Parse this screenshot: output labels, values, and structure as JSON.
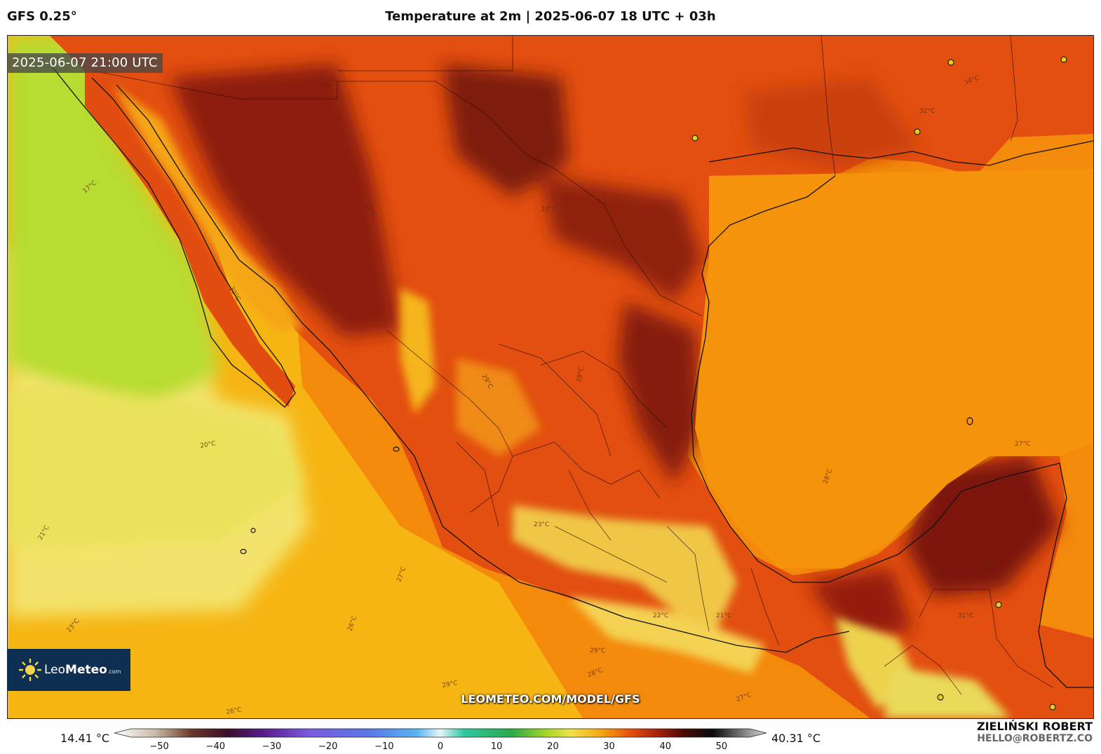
{
  "header": {
    "model": "GFS 0.25°",
    "title": "Temperature at 2m | 2025-06-07 18 UTC + 03h"
  },
  "map": {
    "timestamp": "2025-06-07 21:00 UTC",
    "url": "LEOMETEO.COM/MODEL/GFS",
    "contour_labels": [
      "17°C",
      "20°C",
      "21°C",
      "23°C",
      "26°C",
      "26°C",
      "27°C",
      "27°C",
      "28°C",
      "28°C",
      "29°C",
      "29°C",
      "29°C",
      "29°C",
      "30°C",
      "31°C",
      "31°C",
      "32°C",
      "33°C",
      "34°C",
      "27°C",
      "28°C",
      "31°C",
      "23°C",
      "22°C",
      "21°C"
    ],
    "colors": {
      "cool_ocean": "#b9dd2e",
      "pale_ocean": "#f2e772",
      "warm_ocean": "#f5b310",
      "gulf": "#f38a0c",
      "hot_land": "#d9470f",
      "very_hot_land": "#8e1e0b",
      "highland": "#f0c84a"
    }
  },
  "logo": {
    "brand_pre": "Leo",
    "brand_main": "Meteo",
    "brand_suffix": ".com"
  },
  "colorbar": {
    "min_label": "14.41 °C",
    "max_label": "40.31 °C",
    "ticks": [
      "−50",
      "−40",
      "−30",
      "−20",
      "−10",
      "0",
      "10",
      "20",
      "30",
      "40",
      "50"
    ],
    "range": [
      -55,
      55
    ],
    "stops": [
      {
        "v": -55,
        "c": "#ffffff"
      },
      {
        "v": -48,
        "c": "#c8b9a8"
      },
      {
        "v": -42,
        "c": "#6b3a2a"
      },
      {
        "v": -36,
        "c": "#3a0e2a"
      },
      {
        "v": -30,
        "c": "#5a1a8a"
      },
      {
        "v": -22,
        "c": "#7b5be0"
      },
      {
        "v": -12,
        "c": "#5a78e6"
      },
      {
        "v": -4,
        "c": "#5ab4f0"
      },
      {
        "v": 0,
        "c": "#e8f4f8"
      },
      {
        "v": 4,
        "c": "#2ec8a0"
      },
      {
        "v": 12,
        "c": "#2ea84a"
      },
      {
        "v": 18,
        "c": "#a6d62a"
      },
      {
        "v": 22,
        "c": "#f2e14a"
      },
      {
        "v": 27,
        "c": "#f5a810"
      },
      {
        "v": 32,
        "c": "#e8500e"
      },
      {
        "v": 37,
        "c": "#9e1e0b"
      },
      {
        "v": 41,
        "c": "#4a0a0a"
      },
      {
        "v": 46,
        "c": "#0a0a0a"
      },
      {
        "v": 55,
        "c": "#d8d8d8"
      }
    ]
  },
  "author": {
    "name": "ZIELIŃSKI ROBERT",
    "email": "HELLO@ROBERTZ.CO"
  }
}
